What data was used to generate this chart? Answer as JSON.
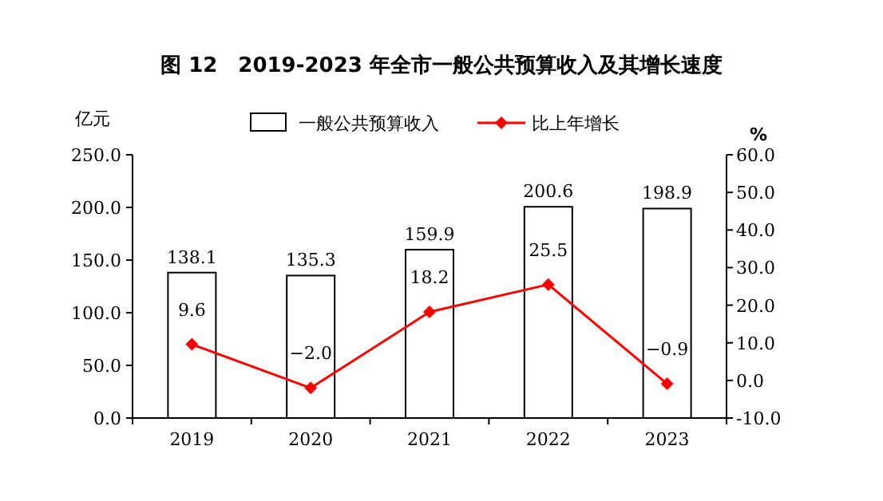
{
  "chart_data": {
    "type": "bar",
    "title": "图 12　2019-2023 年全市一般公共预算收入及其增长速度",
    "ylabel": "亿元",
    "y2label": "%",
    "categories": [
      "2019",
      "2020",
      "2021",
      "2022",
      "2023"
    ],
    "series": [
      {
        "name": "一般公共预算收入",
        "color": "#ffffff",
        "values": [
          138.1,
          135.3,
          159.9,
          200.6,
          198.9
        ],
        "value_labels": [
          "138.1",
          "135.3",
          "159.9",
          "200.6",
          "198.9"
        ]
      },
      {
        "name": "比上年增长",
        "type": "line",
        "axis": "y2",
        "color": "#ff0000",
        "marker": "diamond",
        "values": [
          9.6,
          -2.0,
          18.2,
          25.5,
          -0.9
        ],
        "value_labels": [
          "9.6",
          "−2.0",
          "18.2",
          "25.5",
          "−0.9"
        ]
      }
    ],
    "ylim": [
      0,
      250
    ],
    "yticks": [
      {
        "value": 0,
        "label": "0.0"
      },
      {
        "value": 50,
        "label": "50.0"
      },
      {
        "value": 100,
        "label": "100.0"
      },
      {
        "value": 150,
        "label": "150.0"
      },
      {
        "value": 200,
        "label": "200.0"
      },
      {
        "value": 250,
        "label": "250.0"
      }
    ],
    "y2lim": [
      -10,
      60
    ],
    "y2ticks": [
      {
        "value": -10,
        "label": "-10.0"
      },
      {
        "value": 0,
        "label": "0.0"
      },
      {
        "value": 10,
        "label": "10.0"
      },
      {
        "value": 20,
        "label": "20.0"
      },
      {
        "value": 30,
        "label": "30.0"
      },
      {
        "value": 40,
        "label": "40.0"
      },
      {
        "value": 50,
        "label": "50.0"
      },
      {
        "value": 60,
        "label": "60.0"
      }
    ],
    "grid": false,
    "legend": "top"
  }
}
